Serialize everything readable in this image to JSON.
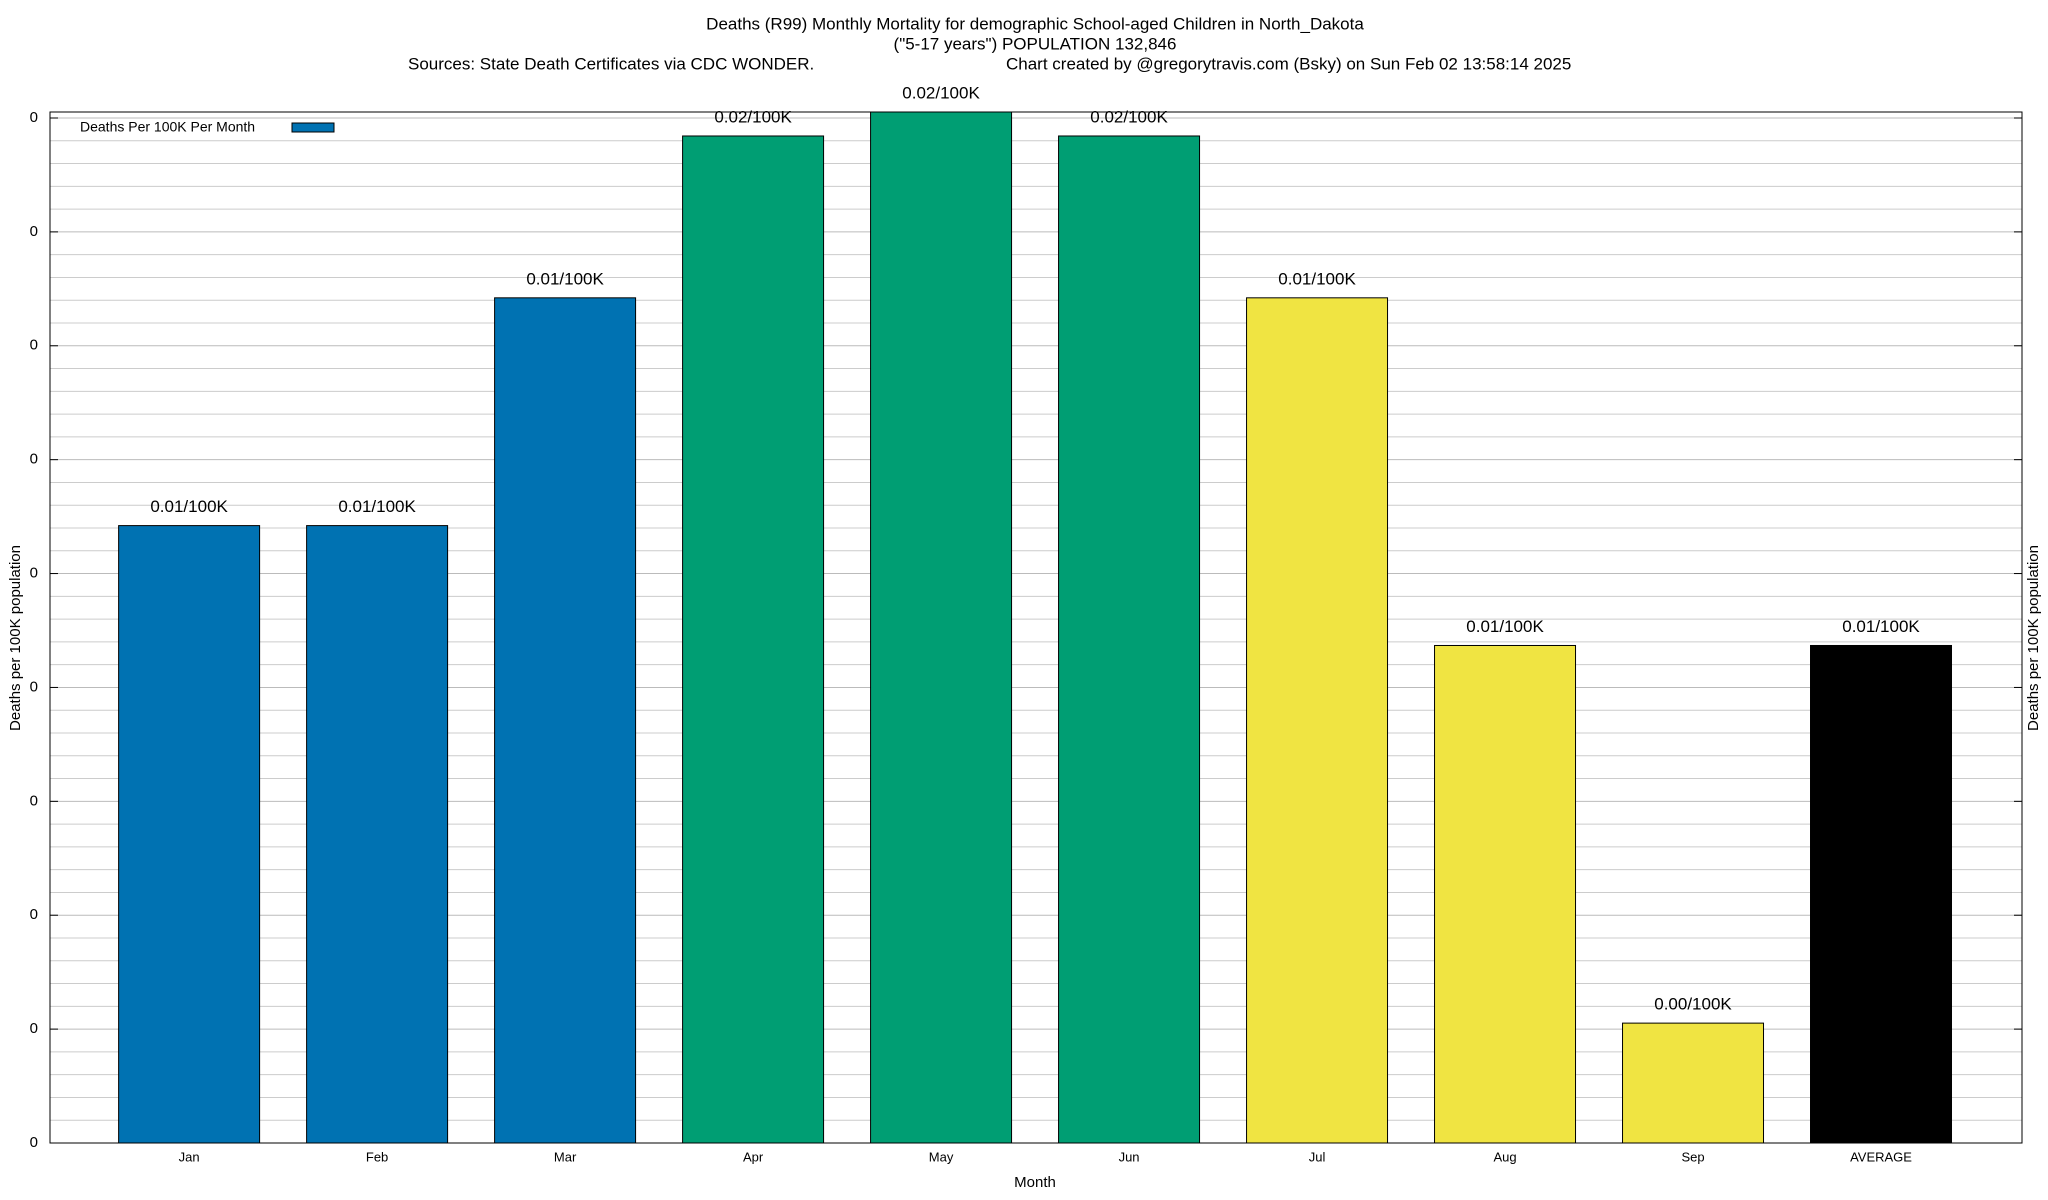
{
  "chart_data": {
    "type": "bar",
    "title": [
      "Deaths (R99) Monthly Mortality for demographic School-aged Children in North_Dakota",
      "(\"5-17 years\") POPULATION 132,846"
    ],
    "sources": "Sources: State Death Certificates via CDC WONDER.",
    "credit": "Chart created by @gregorytravis.com (Bsky) on Sun Feb 02 13:58:14 2025",
    "x_label": "Month",
    "y_label": "Deaths per 100K population",
    "y2_label": "Deaths per 100K population",
    "categories": [
      "Jan",
      "Feb",
      "Mar",
      "Apr",
      "May",
      "Jun",
      "Jul",
      "Aug",
      "Sep",
      "AVERAGE"
    ],
    "series": [
      {
        "name": "Deaths Per 100K Per Month",
        "color": "#0072b2",
        "values": [
          0.0103,
          0.0103,
          0.0141,
          0.0168,
          0.0172,
          0.0168,
          0.0141,
          0.0083,
          0.002,
          0.0083
        ],
        "value_labels": [
          "0.01/100K",
          "0.01/100K",
          "0.01/100K",
          "0.02/100K",
          "0.02/100K",
          "0.02/100K",
          "0.01/100K",
          "0.01/100K",
          "0.00/100K",
          "0.01/100K"
        ],
        "colors": [
          "#0072b2",
          "#0072b2",
          "#0072b2",
          "#009e73",
          "#009e73",
          "#009e73",
          "#f0e442",
          "#f0e442",
          "#f0e442",
          "#000000"
        ]
      }
    ],
    "ylim": [
      0,
      0.0172
    ],
    "yticks": [
      0,
      {
        "value": 0.0019,
        "label": "0"
      },
      {
        "value": 0.0038,
        "label": "0"
      },
      {
        "value": 0.0057,
        "label": "0"
      },
      {
        "value": 0.0076,
        "label": "0"
      },
      {
        "value": 0.0095,
        "label": "0"
      },
      {
        "value": 0.0114,
        "label": "0"
      },
      {
        "value": 0.0133,
        "label": "0"
      },
      {
        "value": 0.0152,
        "label": "0"
      },
      {
        "value": 0.0171,
        "label": "0"
      }
    ],
    "grid": true,
    "minor_grid_divisions": 5,
    "legend": "upper left"
  }
}
